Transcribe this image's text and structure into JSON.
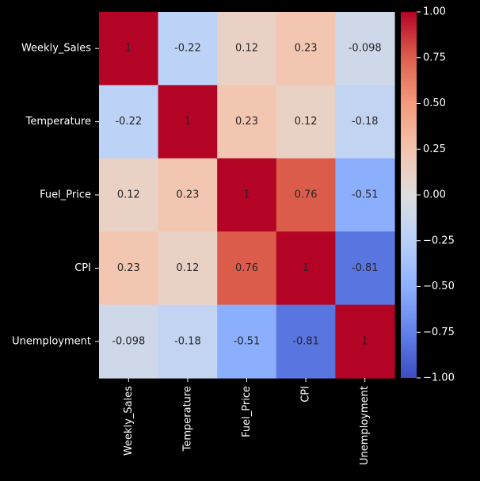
{
  "chart_data": {
    "type": "heatmap",
    "title": "",
    "xlabel": "",
    "ylabel": "",
    "labels": [
      "Weekly_Sales",
      "Temperature",
      "Fuel_Price",
      "CPI",
      "Unemployment"
    ],
    "matrix": [
      [
        1,
        -0.22,
        0.12,
        0.23,
        -0.098
      ],
      [
        -0.22,
        1,
        0.23,
        0.12,
        -0.18
      ],
      [
        0.12,
        0.23,
        1,
        0.76,
        -0.51
      ],
      [
        0.23,
        0.12,
        0.76,
        1,
        -0.81
      ],
      [
        -0.098,
        -0.18,
        -0.51,
        -0.81,
        1
      ]
    ],
    "annotations": [
      [
        "1",
        "-0.22",
        "0.12",
        "0.23",
        "-0.098"
      ],
      [
        "-0.22",
        "1",
        "0.23",
        "0.12",
        "-0.18"
      ],
      [
        "0.12",
        "0.23",
        "1",
        "0.76",
        "-0.51"
      ],
      [
        "0.23",
        "0.12",
        "0.76",
        "1",
        "-0.81"
      ],
      [
        "-0.098",
        "-0.18",
        "-0.51",
        "-0.81",
        "1"
      ]
    ],
    "colorscale": "coolwarm",
    "vmin": -1,
    "vmax": 1,
    "colorbar_ticks": [
      "1.00",
      "0.75",
      "0.50",
      "0.25",
      "0.00",
      "−0.25",
      "−0.50",
      "−0.75",
      "−1.00"
    ],
    "colorbar_values": [
      1,
      0.75,
      0.5,
      0.25,
      0,
      -0.25,
      -0.5,
      -0.75,
      -1
    ],
    "legend": "colorbar-right",
    "background_color": "#000000",
    "text_color": "#ffffff",
    "annotation_color": "#262626"
  }
}
